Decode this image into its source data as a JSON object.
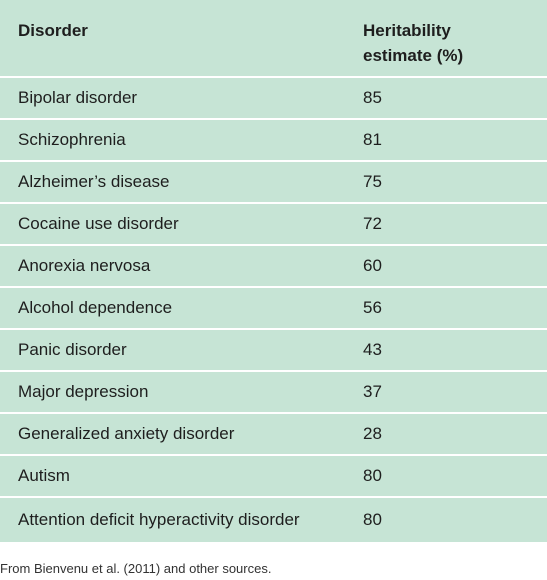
{
  "table": {
    "header": [
      "Disorder",
      "Heritability estimate (%)"
    ],
    "rows": [
      [
        "Bipolar disorder",
        85
      ],
      [
        "Schizophrenia",
        81
      ],
      [
        "Alzheimer’s disease",
        75
      ],
      [
        "Cocaine use disorder",
        72
      ],
      [
        "Anorexia nervosa",
        60
      ],
      [
        "Alcohol dependence",
        56
      ],
      [
        "Panic disorder",
        43
      ],
      [
        "Major depression",
        37
      ],
      [
        "Generalized anxiety disorder",
        28
      ],
      [
        "Autism",
        80
      ],
      [
        "Attention deficit hyperactivity disorder",
        80
      ]
    ]
  },
  "footnote": "From Bienvenu et al. (2011) and other sources."
}
